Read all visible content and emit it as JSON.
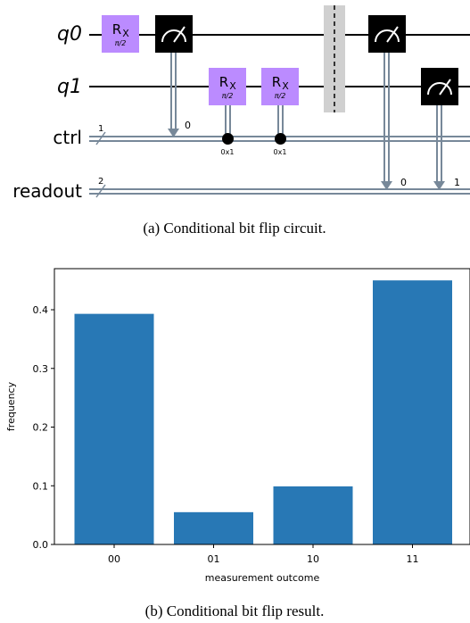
{
  "circuit": {
    "qubits": [
      "q0",
      "q1"
    ],
    "classical_registers": [
      {
        "name": "ctrl",
        "size": "1"
      },
      {
        "name": "readout",
        "size": "2"
      }
    ],
    "gate_label_main": "R",
    "gate_label_sub": "X",
    "gate_param": "π/2",
    "measure_targets": [
      "0",
      "0",
      "1"
    ],
    "condition_value": "0x1",
    "caption": "(a) Conditional bit flip circuit."
  },
  "chart_data": {
    "type": "bar",
    "categories": [
      "00",
      "01",
      "10",
      "11"
    ],
    "values": [
      0.393,
      0.055,
      0.099,
      0.45
    ],
    "xlabel": "measurement outcome",
    "ylabel": "frequency",
    "ylim": [
      0,
      0.47
    ],
    "yticks": [
      "0.0",
      "0.1",
      "0.2",
      "0.3",
      "0.4"
    ],
    "bar_color": "#2878b5",
    "grid": false
  },
  "caption_b": "(b) Conditional bit flip result."
}
